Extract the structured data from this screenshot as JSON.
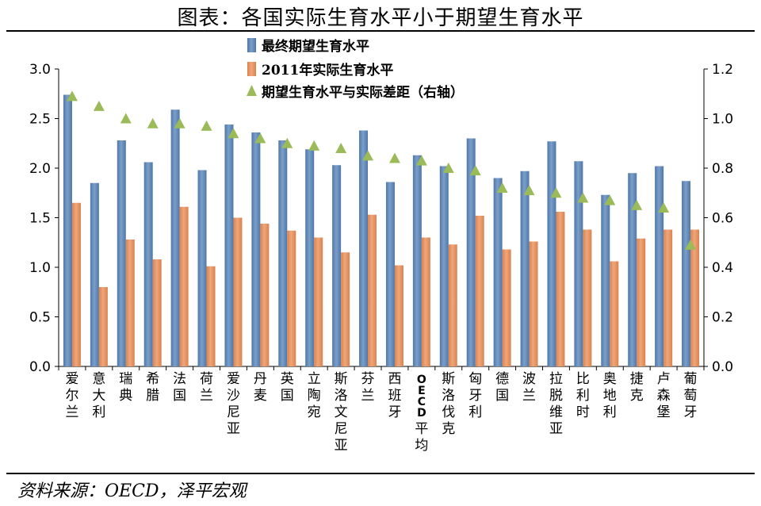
{
  "title": "图表：各国实际生育水平小于期望生育水平",
  "source": "资料来源：OECD，泽平宏观",
  "colors": {
    "ideal": "#7b9fc9",
    "ideal_dark": "#4f77a8",
    "actual": "#f0a67a",
    "actual_dark": "#d9834f",
    "gap": "#9bbb59"
  },
  "chart_data": {
    "type": "bar",
    "title": "各国实际生育水平小于期望生育水平",
    "categories": [
      "爱尔兰",
      "意大利",
      "瑞典",
      "希腊",
      "法国",
      "荷兰",
      "爱沙尼亚",
      "丹麦",
      "英国",
      "立陶宛",
      "斯洛文尼亚",
      "芬兰",
      "西班牙",
      "OECD平均",
      "斯洛伐克",
      "匈牙利",
      "德国",
      "波兰",
      "拉脱维亚",
      "比利时",
      "奥地利",
      "捷克",
      "卢森堡",
      "葡萄牙"
    ],
    "series": [
      {
        "name": "最终期望生育水平",
        "type": "bar",
        "axis": "left",
        "values": [
          2.74,
          1.85,
          2.28,
          2.06,
          2.59,
          1.98,
          2.44,
          2.36,
          2.28,
          2.19,
          2.03,
          2.38,
          1.86,
          2.13,
          2.02,
          2.3,
          1.9,
          1.97,
          2.27,
          2.07,
          1.73,
          1.95,
          2.02,
          1.87
        ]
      },
      {
        "name": "2011年实际生育水平",
        "type": "bar",
        "axis": "left",
        "values": [
          1.65,
          0.8,
          1.28,
          1.08,
          1.61,
          1.01,
          1.5,
          1.44,
          1.37,
          1.3,
          1.15,
          1.53,
          1.02,
          1.3,
          1.23,
          1.52,
          1.18,
          1.26,
          1.56,
          1.38,
          1.06,
          1.29,
          1.38,
          1.38
        ]
      },
      {
        "name": "期望生育水平与实际差距（右轴）",
        "type": "scatter",
        "marker": "triangle",
        "axis": "right",
        "values": [
          1.09,
          1.05,
          1.0,
          0.98,
          0.98,
          0.97,
          0.94,
          0.92,
          0.9,
          0.89,
          0.88,
          0.85,
          0.84,
          0.83,
          0.8,
          0.79,
          0.72,
          0.71,
          0.7,
          0.68,
          0.67,
          0.65,
          0.64,
          0.49
        ]
      }
    ],
    "left_axis": {
      "min": 0,
      "max": 3.0,
      "ticks": [
        "0.0",
        "0.5",
        "1.0",
        "1.5",
        "2.0",
        "2.5",
        "3.0"
      ]
    },
    "right_axis": {
      "min": 0,
      "max": 1.2,
      "ticks": [
        "0.0",
        "0.2",
        "0.4",
        "0.6",
        "0.8",
        "1.0",
        "1.2"
      ]
    },
    "legend_position": "top-center",
    "grid": false
  }
}
